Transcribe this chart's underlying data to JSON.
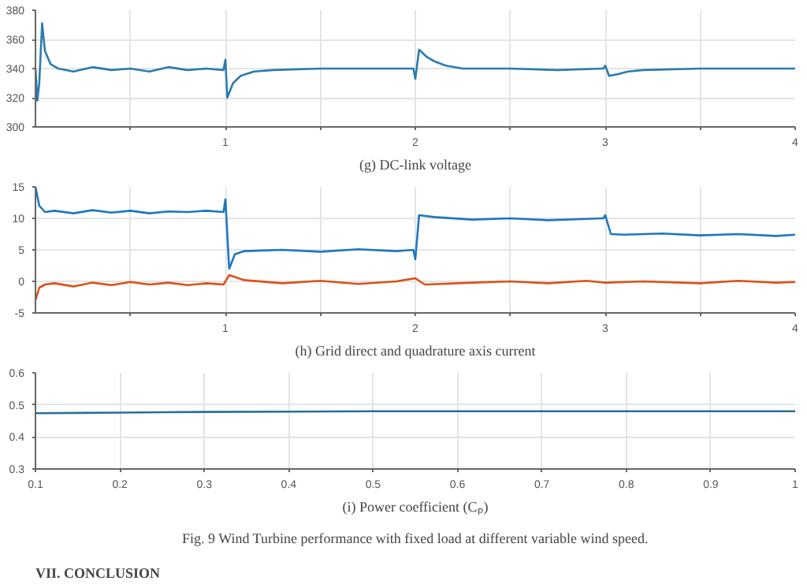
{
  "chart_data": [
    {
      "type": "line",
      "xlabel": "(g) DC-link voltage",
      "xlim": [
        0,
        4
      ],
      "ylim": [
        300,
        380
      ],
      "xticks": [
        {
          "value": 0.5,
          "label": null
        },
        1,
        {
          "value": 1.5,
          "label": null
        },
        2,
        {
          "value": 2.5,
          "label": null
        },
        3,
        {
          "value": 3.5,
          "label": null
        },
        4
      ],
      "yticks": [
        300,
        320,
        340,
        360,
        380
      ],
      "grid": true,
      "series": [
        {
          "color": "#2b7bb0",
          "x": [
            0,
            0.01,
            0.02,
            0.035,
            0.05,
            0.08,
            0.12,
            0.2,
            0.3,
            0.4,
            0.5,
            0.6,
            0.7,
            0.8,
            0.9,
            0.99,
            1.0,
            1.01,
            1.04,
            1.08,
            1.15,
            1.25,
            1.5,
            1.75,
            1.99,
            2.0,
            2.02,
            2.06,
            2.1,
            2.16,
            2.25,
            2.5,
            2.75,
            2.99,
            3.0,
            3.02,
            3.06,
            3.12,
            3.2,
            3.5,
            3.75,
            4
          ],
          "values": [
            340,
            318,
            330,
            371,
            352,
            343,
            340,
            338,
            341,
            339,
            340,
            338,
            341,
            339,
            340,
            339,
            346,
            320,
            330,
            335,
            338,
            339,
            340,
            340,
            340,
            333,
            353,
            348,
            345,
            342,
            340,
            340,
            339,
            340,
            342,
            335,
            336,
            338,
            339,
            340,
            340,
            340
          ]
        }
      ]
    },
    {
      "type": "line",
      "xlabel": "(h) Grid direct and quadrature axis current",
      "xlim": [
        0,
        4
      ],
      "ylim": [
        -5,
        15
      ],
      "xticks": [
        {
          "value": 0.5,
          "label": null
        },
        1,
        {
          "value": 1.5,
          "label": null
        },
        2,
        {
          "value": 2.5,
          "label": null
        },
        3,
        {
          "value": 3.5,
          "label": null
        },
        4
      ],
      "yticks": [
        -5,
        0,
        5,
        10,
        15
      ],
      "grid": true,
      "series": [
        {
          "color": "#1f77c0",
          "x": [
            0,
            0.02,
            0.05,
            0.1,
            0.2,
            0.3,
            0.4,
            0.5,
            0.6,
            0.7,
            0.8,
            0.9,
            0.99,
            1.0,
            1.02,
            1.05,
            1.1,
            1.3,
            1.5,
            1.7,
            1.9,
            1.99,
            2.0,
            2.02,
            2.1,
            2.3,
            2.5,
            2.7,
            2.9,
            2.99,
            3.0,
            3.03,
            3.1,
            3.3,
            3.5,
            3.7,
            3.9,
            4
          ],
          "values": [
            15,
            12,
            11,
            11.2,
            10.8,
            11.3,
            10.9,
            11.2,
            10.8,
            11.1,
            11,
            11.2,
            11,
            13,
            2,
            4.3,
            4.8,
            5,
            4.7,
            5.1,
            4.8,
            5,
            3.5,
            10.5,
            10.2,
            9.8,
            10,
            9.7,
            9.9,
            10,
            10.5,
            7.5,
            7.4,
            7.6,
            7.3,
            7.5,
            7.2,
            7.4
          ]
        },
        {
          "color": "#d95319",
          "x": [
            0,
            0.02,
            0.05,
            0.1,
            0.2,
            0.3,
            0.4,
            0.5,
            0.6,
            0.7,
            0.8,
            0.9,
            0.99,
            1.02,
            1.1,
            1.3,
            1.5,
            1.7,
            1.9,
            2.0,
            2.05,
            2.3,
            2.5,
            2.7,
            2.9,
            3.0,
            3.2,
            3.5,
            3.7,
            3.9,
            4
          ],
          "values": [
            -3,
            -1,
            -0.5,
            -0.3,
            -0.8,
            -0.2,
            -0.6,
            -0.1,
            -0.5,
            -0.2,
            -0.6,
            -0.3,
            -0.5,
            1,
            0.2,
            -0.3,
            0.1,
            -0.4,
            0,
            0.5,
            -0.5,
            -0.2,
            0,
            -0.3,
            0.1,
            -0.2,
            0,
            -0.3,
            0.1,
            -0.2,
            -0.1
          ]
        }
      ]
    },
    {
      "type": "line",
      "xlabel": "(i) Power coefficient (Cₚ)",
      "annotations": [
        "Fig. 9 Wind Turbine performance with fixed load at different variable wind speed.",
        "VII. CONCLUSION"
      ],
      "xlim": [
        0.1,
        1
      ],
      "ylim": [
        0.3,
        0.6
      ],
      "xticks": [
        0.1,
        0.2,
        0.3,
        0.4,
        0.5,
        0.6,
        0.7,
        0.8,
        0.9,
        1
      ],
      "yticks": [
        0.3,
        0.4,
        0.5,
        0.6
      ],
      "grid": true,
      "series": [
        {
          "color": "#2b6f97",
          "x": [
            0.1,
            0.15,
            0.2,
            0.25,
            0.3,
            0.4,
            0.5,
            0.7,
            1
          ],
          "values": [
            0.474,
            0.475,
            0.476,
            0.477,
            0.478,
            0.479,
            0.48,
            0.48,
            0.48
          ]
        }
      ]
    }
  ]
}
